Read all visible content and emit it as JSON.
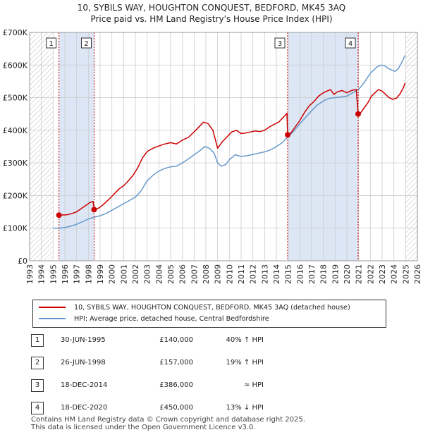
{
  "chart_data": {
    "type": "line",
    "title": "10, SYBILS WAY, HOUGHTON CONQUEST, BEDFORD, MK45 3AQ",
    "subtitle": "Price paid vs. HM Land Registry's House Price Index (HPI)",
    "xlabel": "",
    "ylabel": "",
    "xlim": [
      1993,
      2026
    ],
    "ylim": [
      0,
      700000
    ],
    "y_ticks": [
      {
        "value": 0,
        "label": "£0"
      },
      {
        "value": 100000,
        "label": "£100K"
      },
      {
        "value": 200000,
        "label": "£200K"
      },
      {
        "value": 300000,
        "label": "£300K"
      },
      {
        "value": 400000,
        "label": "£400K"
      },
      {
        "value": 500000,
        "label": "£500K"
      },
      {
        "value": 600000,
        "label": "£600K"
      },
      {
        "value": 700000,
        "label": "£700K"
      }
    ],
    "x_ticks": [
      "1993",
      "1994",
      "1995",
      "1996",
      "1997",
      "1998",
      "1999",
      "2000",
      "2001",
      "2002",
      "2003",
      "2004",
      "2005",
      "2006",
      "2007",
      "2008",
      "2009",
      "2010",
      "2011",
      "2012",
      "2013",
      "2014",
      "2015",
      "2016",
      "2017",
      "2018",
      "2019",
      "2020",
      "2021",
      "2022",
      "2023",
      "2024",
      "2025",
      "2026"
    ],
    "grid": true,
    "hatched_ranges": [
      [
        1993,
        1995.0
      ],
      [
        2025.0,
        2026
      ]
    ],
    "highlight_ranges": [
      [
        1995.5,
        1998.5
      ],
      [
        2014.96,
        2020.96
      ]
    ],
    "series": [
      {
        "name": "10, SYBILS WAY, HOUGHTON CONQUEST, BEDFORD, MK45 3AQ (detached house)",
        "color": "#cc0000",
        "x": [
          1995.5,
          1995.8,
          1996.2,
          1996.6,
          1997.0,
          1997.4,
          1997.8,
          1998.1,
          1998.4,
          1998.49,
          1998.6,
          1998.9,
          1999.2,
          1999.5,
          1999.8,
          2000.2,
          2000.6,
          2001.0,
          2001.4,
          2001.8,
          2002.2,
          2002.6,
          2003.0,
          2003.5,
          2004.0,
          2004.5,
          2005.0,
          2005.5,
          2006.0,
          2006.5,
          2007.0,
          2007.4,
          2007.8,
          2008.2,
          2008.6,
          2009.0,
          2009.4,
          2009.8,
          2010.2,
          2010.6,
          2011.0,
          2011.4,
          2011.8,
          2012.2,
          2012.6,
          2013.0,
          2013.4,
          2013.8,
          2014.2,
          2014.6,
          2014.9,
          2014.96,
          2015.2,
          2015.6,
          2016.0,
          2016.4,
          2016.8,
          2017.2,
          2017.6,
          2018.0,
          2018.3,
          2018.6,
          2018.9,
          2019.2,
          2019.6,
          2020.0,
          2020.4,
          2020.8,
          2020.96,
          2021.2,
          2021.5,
          2021.8,
          2022.1,
          2022.4,
          2022.7,
          2023.0,
          2023.3,
          2023.6,
          2023.9,
          2024.2,
          2024.5,
          2024.8,
          2024.95
        ],
        "values": [
          140000,
          140500,
          141000,
          145000,
          150000,
          160000,
          170000,
          178000,
          182000,
          157000,
          158000,
          162000,
          170000,
          180000,
          190000,
          205000,
          220000,
          230000,
          245000,
          262000,
          285000,
          315000,
          335000,
          345000,
          352000,
          358000,
          362000,
          358000,
          370000,
          378000,
          395000,
          410000,
          425000,
          420000,
          400000,
          345000,
          365000,
          380000,
          395000,
          400000,
          390000,
          392000,
          395000,
          398000,
          396000,
          400000,
          410000,
          418000,
          425000,
          440000,
          452000,
          386000,
          390000,
          410000,
          430000,
          455000,
          475000,
          488000,
          505000,
          515000,
          520000,
          525000,
          510000,
          518000,
          522000,
          515000,
          522000,
          525000,
          450000,
          455000,
          470000,
          485000,
          505000,
          515000,
          525000,
          520000,
          510000,
          500000,
          495000,
          498000,
          510000,
          530000,
          545000
        ]
      },
      {
        "name": "HPI: Average price, detached house, Central Bedfordshire",
        "color": "#6699cc",
        "x": [
          1995.0,
          1995.5,
          1996.0,
          1996.5,
          1997.0,
          1997.5,
          1998.0,
          1998.5,
          1999.0,
          1999.5,
          2000.0,
          2000.5,
          2001.0,
          2001.5,
          2002.0,
          2002.5,
          2003.0,
          2003.5,
          2004.0,
          2004.5,
          2005.0,
          2005.5,
          2006.0,
          2006.5,
          2007.0,
          2007.5,
          2007.9,
          2008.3,
          2008.7,
          2009.0,
          2009.3,
          2009.7,
          2010.0,
          2010.5,
          2011.0,
          2011.5,
          2012.0,
          2012.5,
          2013.0,
          2013.5,
          2014.0,
          2014.5,
          2015.0,
          2015.5,
          2016.0,
          2016.5,
          2017.0,
          2017.5,
          2018.0,
          2018.5,
          2019.0,
          2019.5,
          2020.0,
          2020.5,
          2021.0,
          2021.5,
          2022.0,
          2022.3,
          2022.6,
          2022.9,
          2023.2,
          2023.5,
          2023.8,
          2024.1,
          2024.4,
          2024.7,
          2024.95
        ],
        "values": [
          100000,
          100000,
          102000,
          106000,
          112000,
          120000,
          128000,
          134000,
          138000,
          145000,
          155000,
          165000,
          175000,
          185000,
          195000,
          215000,
          245000,
          262000,
          275000,
          283000,
          288000,
          290000,
          300000,
          312000,
          325000,
          338000,
          350000,
          345000,
          330000,
          300000,
          290000,
          295000,
          310000,
          325000,
          320000,
          322000,
          326000,
          330000,
          334000,
          340000,
          350000,
          362000,
          380000,
          398000,
          420000,
          440000,
          460000,
          478000,
          490000,
          498000,
          500000,
          502000,
          505000,
          515000,
          525000,
          548000,
          575000,
          585000,
          595000,
          600000,
          598000,
          590000,
          585000,
          580000,
          590000,
          610000,
          630000
        ]
      }
    ],
    "sales": [
      {
        "num": "1",
        "date": "30-JUN-1995",
        "x": 1995.5,
        "price_value": 140000,
        "price": "£140,000",
        "hpi": "40% ↑ HPI"
      },
      {
        "num": "2",
        "date": "26-JUN-1998",
        "x": 1998.49,
        "price_value": 157000,
        "price": "£157,000",
        "hpi": "19% ↑ HPI"
      },
      {
        "num": "3",
        "date": "18-DEC-2014",
        "x": 2014.96,
        "price_value": 386000,
        "price": "£386,000",
        "hpi": "≈ HPI"
      },
      {
        "num": "4",
        "date": "18-DEC-2020",
        "x": 2020.96,
        "price_value": 450000,
        "price": "£450,000",
        "hpi": "13% ↓ HPI"
      }
    ]
  },
  "legend": {
    "property_label": "10, SYBILS WAY, HOUGHTON CONQUEST, BEDFORD, MK45 3AQ (detached house)",
    "hpi_label": "HPI: Average price, detached house, Central Bedfordshire"
  },
  "footer": {
    "line1": "Contains HM Land Registry data © Crown copyright and database right 2025.",
    "line2": "This data is licensed under the Open Government Licence v3.0."
  }
}
